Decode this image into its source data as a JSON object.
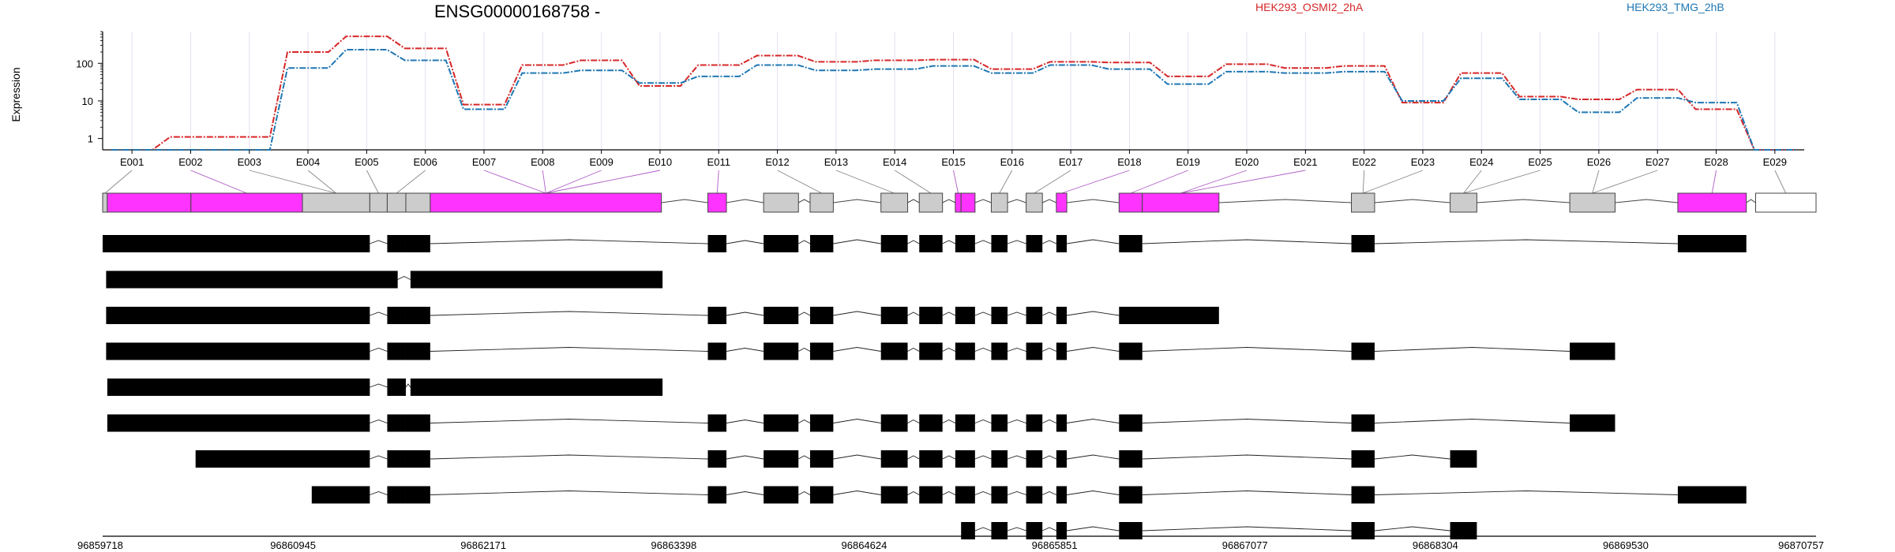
{
  "chart_data": {
    "type": "line",
    "title": "ENSG00000168758 -",
    "ylabel": "Expression",
    "yscale": "log",
    "ylim": [
      0.5,
      700
    ],
    "yticks": [
      "1",
      "10",
      "100"
    ],
    "grid": true,
    "legend_position": "top-right",
    "categories": [
      "E001",
      "E002",
      "E003",
      "E004",
      "E005",
      "E006",
      "E007",
      "E008",
      "E009",
      "E010",
      "E011",
      "E012",
      "E013",
      "E014",
      "E015",
      "E016",
      "E017",
      "E018",
      "E019",
      "E020",
      "E021",
      "E022",
      "E023",
      "E024",
      "E025",
      "E026",
      "E027",
      "E028",
      "E029"
    ],
    "series": [
      {
        "name": "HEK293_OSMI2_2hA",
        "color": "#d62728",
        "values": [
          0.5,
          1.1,
          1.1,
          200,
          520,
          250,
          8,
          90,
          120,
          25,
          90,
          160,
          110,
          120,
          125,
          70,
          110,
          105,
          45,
          95,
          75,
          85,
          9,
          55,
          13,
          11,
          20,
          6,
          0.5
        ]
      },
      {
        "name": "HEK293_TMG_2hB",
        "color": "#1f77b4",
        "values": [
          0.5,
          0.5,
          0.5,
          75,
          230,
          120,
          6,
          55,
          65,
          30,
          45,
          90,
          65,
          70,
          85,
          55,
          90,
          70,
          28,
          60,
          55,
          60,
          10,
          40,
          11,
          5,
          12,
          9,
          0.5
        ]
      }
    ],
    "exon_spans": [
      [
        0,
        4
      ],
      [
        4,
        76
      ],
      [
        76,
        172
      ],
      [
        172,
        230
      ],
      [
        230,
        245
      ],
      [
        245,
        261
      ],
      [
        261,
        282
      ],
      [
        282,
        481
      ],
      [
        521,
        537
      ],
      [
        569,
        599
      ],
      [
        609,
        629
      ],
      [
        670,
        693
      ],
      [
        703,
        723
      ],
      [
        734,
        739
      ],
      [
        739,
        751
      ],
      [
        765,
        779
      ],
      [
        795,
        809
      ],
      [
        821,
        830
      ],
      [
        875,
        895
      ],
      [
        895,
        961
      ],
      [
        1075,
        1095
      ],
      [
        1160,
        1183
      ],
      [
        1263,
        1302
      ],
      [
        1356,
        1415
      ],
      [
        1423,
        1475
      ]
    ],
    "exon_fill": [
      "#cccccc",
      "#ff33ff",
      "#ff33ff",
      "#cccccc",
      "#cccccc",
      "#cccccc",
      "#cccccc",
      "#ff33ff",
      "#ff33ff",
      "#cccccc",
      "#cccccc",
      "#cccccc",
      "#cccccc",
      "#ff33ff",
      "#ff33ff",
      "#cccccc",
      "#cccccc",
      "#ff33ff",
      "#ff33ff",
      "#ff33ff",
      "#cccccc",
      "#cccccc",
      "#cccccc",
      "#ff33ff",
      "#ffffff"
    ],
    "label_targets": [
      1,
      2,
      3,
      4,
      5,
      6,
      7,
      8,
      8,
      8,
      9,
      10,
      11,
      12,
      13,
      14,
      15,
      16,
      17,
      18,
      18,
      19,
      20,
      20,
      21,
      22,
      23,
      24,
      25,
      26,
      27,
      28,
      29
    ],
    "exon_label_links": [
      [
        0,
        0
      ],
      [
        1,
        2
      ],
      [
        2,
        3
      ],
      [
        3,
        3
      ],
      [
        4,
        4
      ],
      [
        5,
        5
      ],
      [
        6,
        7
      ],
      [
        7,
        7
      ],
      [
        8,
        7
      ],
      [
        9,
        7
      ],
      [
        10,
        8
      ],
      [
        11,
        10
      ],
      [
        12,
        11
      ],
      [
        13,
        12
      ],
      [
        14,
        13
      ],
      [
        15,
        15
      ],
      [
        16,
        16
      ],
      [
        17,
        17
      ],
      [
        18,
        18
      ],
      [
        19,
        19
      ],
      [
        20,
        19
      ],
      [
        21,
        20
      ],
      [
        22,
        20
      ],
      [
        23,
        21
      ],
      [
        24,
        21
      ],
      [
        25,
        22
      ],
      [
        26,
        22
      ],
      [
        27,
        23
      ],
      [
        28,
        24
      ]
    ],
    "transcripts": [
      [
        [
          0,
          230
        ],
        [
          245,
          261
        ],
        [
          261,
          282
        ],
        [
          521,
          537
        ],
        [
          569,
          599
        ],
        [
          609,
          629
        ],
        [
          670,
          693
        ],
        [
          703,
          723
        ],
        [
          734,
          751
        ],
        [
          765,
          779
        ],
        [
          795,
          809
        ],
        [
          821,
          830
        ],
        [
          875,
          895
        ],
        [
          1075,
          1095
        ],
        [
          1356,
          1415
        ]
      ],
      [
        [
          3,
          254
        ],
        [
          265,
          482
        ]
      ],
      [
        [
          3,
          230
        ],
        [
          245,
          261
        ],
        [
          261,
          282
        ],
        [
          521,
          537
        ],
        [
          569,
          599
        ],
        [
          609,
          629
        ],
        [
          670,
          693
        ],
        [
          703,
          723
        ],
        [
          734,
          751
        ],
        [
          765,
          779
        ],
        [
          795,
          809
        ],
        [
          821,
          830
        ],
        [
          875,
          961
        ]
      ],
      [
        [
          3,
          230
        ],
        [
          245,
          261
        ],
        [
          261,
          282
        ],
        [
          521,
          537
        ],
        [
          569,
          599
        ],
        [
          609,
          629
        ],
        [
          670,
          693
        ],
        [
          703,
          723
        ],
        [
          734,
          751
        ],
        [
          765,
          779
        ],
        [
          795,
          809
        ],
        [
          821,
          830
        ],
        [
          875,
          895
        ],
        [
          1075,
          1095
        ],
        [
          1263,
          1302
        ]
      ],
      [
        [
          4,
          230
        ],
        [
          245,
          261
        ],
        [
          265,
          482
        ]
      ],
      [
        [
          4,
          230
        ],
        [
          245,
          261
        ],
        [
          261,
          282
        ],
        [
          521,
          537
        ],
        [
          569,
          599
        ],
        [
          609,
          629
        ],
        [
          670,
          693
        ],
        [
          703,
          723
        ],
        [
          734,
          751
        ],
        [
          765,
          779
        ],
        [
          795,
          809
        ],
        [
          821,
          830
        ],
        [
          875,
          895
        ],
        [
          1075,
          1095
        ],
        [
          1263,
          1302
        ]
      ],
      [
        [
          80,
          230
        ],
        [
          245,
          261
        ],
        [
          261,
          282
        ],
        [
          521,
          537
        ],
        [
          569,
          599
        ],
        [
          609,
          629
        ],
        [
          670,
          693
        ],
        [
          703,
          723
        ],
        [
          734,
          751
        ],
        [
          765,
          779
        ],
        [
          795,
          809
        ],
        [
          821,
          830
        ],
        [
          875,
          895
        ],
        [
          1075,
          1095
        ],
        [
          1160,
          1183
        ]
      ],
      [
        [
          180,
          230
        ],
        [
          245,
          261
        ],
        [
          261,
          282
        ],
        [
          521,
          537
        ],
        [
          569,
          599
        ],
        [
          609,
          629
        ],
        [
          670,
          693
        ],
        [
          703,
          723
        ],
        [
          734,
          751
        ],
        [
          765,
          779
        ],
        [
          795,
          809
        ],
        [
          821,
          830
        ],
        [
          875,
          895
        ],
        [
          1075,
          1095
        ],
        [
          1356,
          1415
        ]
      ],
      [
        [
          739,
          751
        ],
        [
          765,
          779
        ],
        [
          795,
          809
        ],
        [
          821,
          830
        ],
        [
          875,
          895
        ],
        [
          1075,
          1095
        ],
        [
          1160,
          1183
        ]
      ],
      [
        [
          795,
          809
        ],
        [
          821,
          830
        ],
        [
          875,
          895
        ],
        [
          1075,
          1095
        ],
        [
          1423,
          1475
        ]
      ]
    ],
    "coordinates": [
      "96859718",
      "96860945",
      "96862171",
      "96863398",
      "96864624",
      "96865851",
      "96867077",
      "96868304",
      "96869530",
      "96870757"
    ]
  }
}
